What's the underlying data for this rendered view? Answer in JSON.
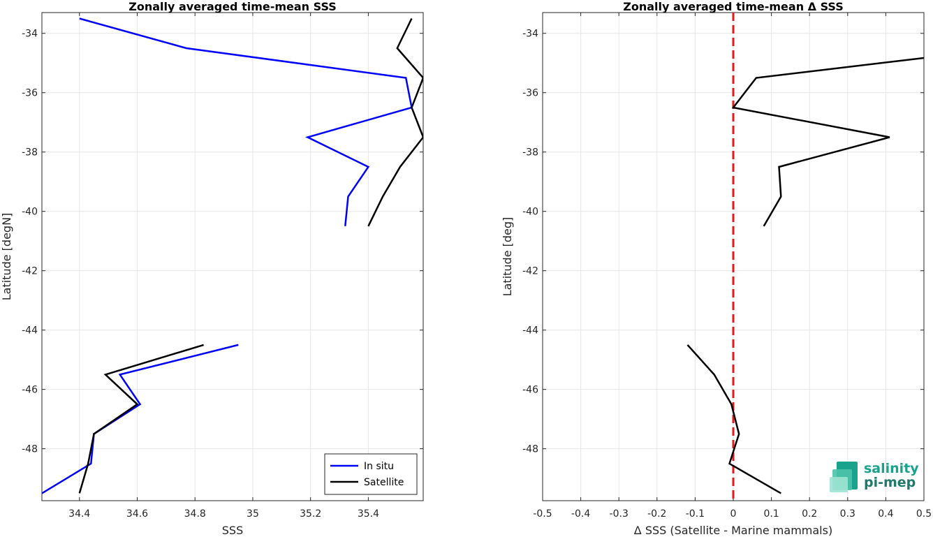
{
  "chart_data": [
    {
      "type": "line",
      "title": "Zonally averaged time-mean SSS",
      "xlabel": "SSS",
      "ylabel": "Latitude [degN]",
      "xlim": [
        34.27,
        35.59
      ],
      "ylim": [
        -49.75,
        -33.3
      ],
      "grid": true,
      "legend_position": "bottom-right",
      "xticks": [
        34.4,
        34.6,
        34.8,
        35,
        35.2,
        35.4
      ],
      "xtick_labels": [
        "34.4",
        "34.6",
        "34.8",
        "35",
        "35.2",
        "35.4"
      ],
      "yticks": [
        -34,
        -36,
        -38,
        -40,
        -42,
        -44,
        -46,
        -48
      ],
      "ytick_labels": [
        "-34",
        "-36",
        "-38",
        "-40",
        "-42",
        "-44",
        "-46",
        "-48"
      ],
      "series": [
        {
          "name": "In situ",
          "color": "#0000ff",
          "segments": [
            {
              "x": [
                34.4,
                34.77,
                35.53,
                35.55,
                35.19,
                35.4,
                35.33,
                35.32
              ],
              "y": [
                -33.5,
                -34.5,
                -35.5,
                -36.5,
                -37.5,
                -38.5,
                -39.5,
                -40.5
              ]
            },
            {
              "x": [
                34.95,
                34.54,
                34.61,
                34.45,
                34.44,
                34.27
              ],
              "y": [
                -44.5,
                -45.5,
                -46.5,
                -47.5,
                -48.5,
                -49.5
              ]
            }
          ]
        },
        {
          "name": "Satellite",
          "color": "#000000",
          "segments": [
            {
              "x": [
                35.55,
                35.5,
                35.59,
                35.55,
                35.59,
                35.51,
                35.45,
                35.4
              ],
              "y": [
                -33.5,
                -34.5,
                -35.5,
                -36.5,
                -37.5,
                -38.5,
                -39.5,
                -40.5
              ]
            },
            {
              "x": [
                34.83,
                34.49,
                34.6,
                34.45,
                34.43,
                34.4
              ],
              "y": [
                -44.5,
                -45.5,
                -46.5,
                -47.5,
                -48.5,
                -49.5
              ]
            }
          ]
        }
      ]
    },
    {
      "type": "line",
      "title": "Zonally averaged time-mean Δ SSS",
      "xlabel": "Δ SSS (Satellite - Marine mammals)",
      "ylabel": "Latitude [deg]",
      "xlim": [
        -0.5,
        0.5
      ],
      "ylim": [
        -49.75,
        -33.3
      ],
      "grid": true,
      "xticks": [
        -0.5,
        -0.4,
        -0.3,
        -0.2,
        -0.1,
        0,
        0.1,
        0.2,
        0.3,
        0.4,
        0.5
      ],
      "xtick_labels": [
        "-0.5",
        "-0.4",
        "-0.3",
        "-0.2",
        "-0.1",
        "0",
        "0.1",
        "0.2",
        "0.3",
        "0.4",
        "0.5"
      ],
      "yticks": [
        -34,
        -36,
        -38,
        -40,
        -42,
        -44,
        -46,
        -48
      ],
      "ytick_labels": [
        "-34",
        "-36",
        "-38",
        "-40",
        "-42",
        "-44",
        "-46",
        "-48"
      ],
      "reference_line": {
        "x": 0,
        "color": "#e41a1c",
        "style": "dashed"
      },
      "series": [
        {
          "color": "#000000",
          "segments": [
            {
              "x": [
                0.5,
                0.06,
                0.0,
                0.41,
                0.12,
                0.125,
                0.08
              ],
              "y": [
                -34.83,
                -35.5,
                -36.5,
                -37.5,
                -38.5,
                -39.5,
                -40.5
              ]
            },
            {
              "x": [
                -0.12,
                -0.05,
                -0.005,
                0.015,
                -0.01,
                0.125
              ],
              "y": [
                -44.5,
                -45.5,
                -46.5,
                -47.5,
                -48.5,
                -49.5
              ]
            }
          ]
        }
      ]
    }
  ],
  "logo": {
    "line1": "salinity",
    "line2": "pi-mep",
    "colors": [
      "#1aa38c",
      "#1f7a6c",
      "#7fd8c4"
    ]
  }
}
